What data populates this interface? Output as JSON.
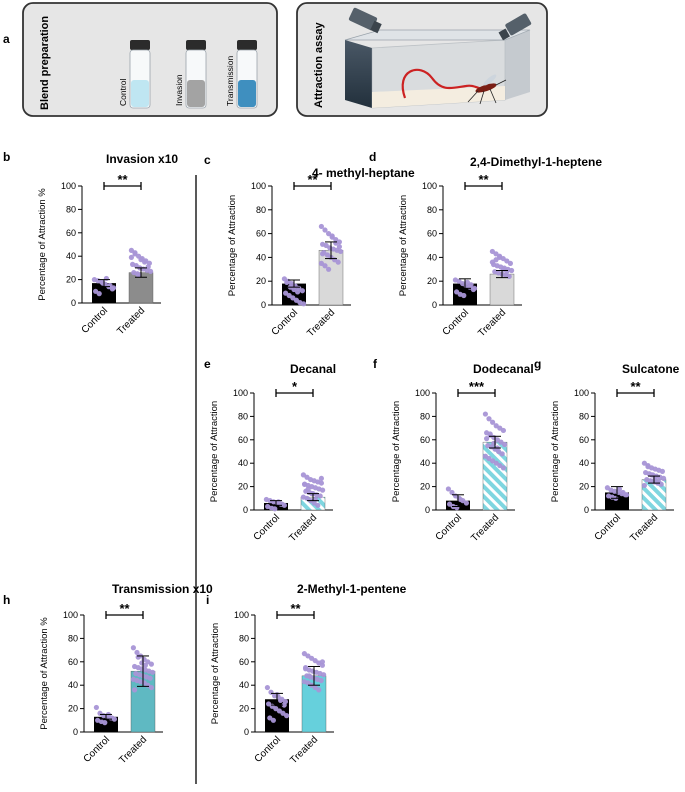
{
  "panels": {
    "a": "a",
    "b": "b",
    "c": "c",
    "d": "d",
    "e": "e",
    "f": "f",
    "g": "g",
    "h": "h",
    "i": "i"
  },
  "blend_box": {
    "title": "Blend preparation",
    "vials": [
      {
        "label": "Control",
        "color": "#bfe6f2"
      },
      {
        "label": "Invasion",
        "color": "#a3a3a3"
      },
      {
        "label": "Transmission",
        "color": "#3f8fbf"
      }
    ]
  },
  "assay_box": {
    "title": "Attraction assay"
  },
  "colors": {
    "control_bar": "#000000",
    "point": "#a895d6",
    "treated_invasion": "#8c8c8c",
    "treated_light": "#d9d9d9",
    "treated_cyan": "#66d0dc",
    "treated_teal": "#5fb9c2",
    "treated_hatch": "#7fd6e0"
  },
  "chart_data": [
    {
      "id": "b",
      "type": "bar",
      "title": "Invasion x10",
      "ylabel": "Percentage of Attraction %",
      "categories": [
        "Control",
        "Treated"
      ],
      "values": [
        17,
        26
      ],
      "errors": [
        3,
        4
      ],
      "ylim": [
        0,
        100
      ],
      "yticks": [
        0,
        20,
        40,
        60,
        80,
        100
      ],
      "significance": "**",
      "control_points": [
        20,
        19,
        18,
        16,
        14,
        12,
        10,
        8,
        17,
        21,
        15,
        13
      ],
      "treated_points": [
        45,
        42,
        40,
        38,
        36,
        34,
        33,
        32,
        30,
        29,
        28,
        27,
        26,
        25,
        37,
        35,
        31,
        39,
        43,
        24
      ],
      "treated_style": "gray"
    },
    {
      "id": "c",
      "type": "bar",
      "title": "4- methyl-heptane",
      "ylabel": "Percentage of Attraction",
      "categories": [
        "Control",
        "Treated"
      ],
      "values": [
        18,
        46
      ],
      "errors": [
        3,
        7
      ],
      "ylim": [
        0,
        100
      ],
      "yticks": [
        0,
        20,
        40,
        60,
        80,
        100
      ],
      "significance": "**",
      "control_points": [
        22,
        20,
        18,
        16,
        14,
        12,
        10,
        8,
        6,
        4,
        2,
        1,
        19,
        15,
        13,
        11
      ],
      "treated_points": [
        66,
        63,
        60,
        58,
        55,
        53,
        51,
        50,
        48,
        47,
        46,
        45,
        44,
        42,
        40,
        38,
        36,
        35,
        33,
        30,
        57,
        52,
        49,
        43
      ],
      "treated_style": "light"
    },
    {
      "id": "d",
      "type": "bar",
      "title": "2,4-Dimethyl-1-heptene",
      "ylabel": "Percentage of Attraction",
      "categories": [
        "Control",
        "Treated"
      ],
      "values": [
        18,
        26
      ],
      "errors": [
        4,
        3
      ],
      "ylim": [
        0,
        100
      ],
      "yticks": [
        0,
        20,
        40,
        60,
        80,
        100
      ],
      "significance": "**",
      "control_points": [
        21,
        20,
        18,
        16,
        15,
        13,
        11,
        9,
        8,
        19,
        17,
        14
      ],
      "treated_points": [
        45,
        43,
        41,
        39,
        37,
        35,
        34,
        33,
        32,
        31,
        30,
        29,
        28,
        27,
        26,
        25,
        24,
        36,
        38,
        40,
        30,
        28
      ],
      "treated_style": "light"
    },
    {
      "id": "e",
      "type": "bar",
      "title": "Decanal",
      "ylabel": "Percentage of Attraction",
      "categories": [
        "Control",
        "Treated"
      ],
      "values": [
        6,
        11
      ],
      "errors": [
        2,
        3
      ],
      "ylim": [
        0,
        100
      ],
      "yticks": [
        0,
        20,
        40,
        60,
        80,
        100
      ],
      "significance": "*",
      "control_points": [
        9,
        8,
        7,
        6,
        5,
        4,
        3,
        2,
        1,
        7,
        5
      ],
      "treated_points": [
        30,
        28,
        26,
        25,
        24,
        23,
        22,
        21,
        20,
        19,
        18,
        17,
        16,
        15,
        14,
        13,
        12,
        11,
        10,
        8,
        6,
        4,
        27,
        22,
        18,
        14,
        9
      ],
      "treated_style": "hatch"
    },
    {
      "id": "f",
      "type": "bar",
      "title": "Dodecanal",
      "ylabel": "Percentage of Attraction",
      "categories": [
        "Control",
        "Treated"
      ],
      "values": [
        8,
        58
      ],
      "errors": [
        5,
        5
      ],
      "ylim": [
        0,
        100
      ],
      "yticks": [
        0,
        20,
        40,
        60,
        80,
        100
      ],
      "significance": "***",
      "control_points": [
        18,
        15,
        12,
        10,
        8,
        6,
        5,
        3,
        2,
        9
      ],
      "treated_points": [
        82,
        78,
        75,
        72,
        70,
        68,
        66,
        64,
        62,
        60,
        58,
        56,
        55,
        54,
        52,
        50,
        48,
        46,
        44,
        42,
        40,
        38,
        36,
        61,
        65,
        57,
        53
      ],
      "treated_style": "hatch"
    },
    {
      "id": "g",
      "type": "bar",
      "title": "Sulcatone",
      "ylabel": "Percentage of Attraction",
      "categories": [
        "Control",
        "Treated"
      ],
      "values": [
        15,
        26
      ],
      "errors": [
        5,
        3
      ],
      "ylim": [
        0,
        100
      ],
      "yticks": [
        0,
        20,
        40,
        60,
        80,
        100
      ],
      "significance": "**",
      "control_points": [
        19,
        17,
        16,
        15,
        14,
        13,
        12,
        11,
        10,
        18,
        15,
        13
      ],
      "treated_points": [
        40,
        38,
        36,
        35,
        34,
        33,
        32,
        31,
        30,
        29,
        28,
        27,
        26,
        25,
        24,
        23,
        22,
        21,
        37,
        30,
        27,
        24
      ],
      "treated_style": "hatch"
    },
    {
      "id": "h",
      "type": "bar",
      "title": "Transmission x10",
      "ylabel": "Percentage of Attraction %",
      "categories": [
        "Control",
        "Treated"
      ],
      "values": [
        13,
        52
      ],
      "errors": [
        2,
        13
      ],
      "ylim": [
        0,
        100
      ],
      "yticks": [
        0,
        20,
        40,
        60,
        80,
        100
      ],
      "significance": "**",
      "control_points": [
        21,
        16,
        14,
        13,
        12,
        11,
        10,
        9,
        8,
        15,
        12
      ],
      "treated_points": [
        72,
        68,
        65,
        62,
        60,
        58,
        56,
        55,
        54,
        53,
        52,
        51,
        50,
        49,
        48,
        47,
        46,
        45,
        44,
        43,
        42,
        40,
        38,
        36,
        64,
        59,
        57
      ],
      "treated_style": "teal"
    },
    {
      "id": "i",
      "type": "bar",
      "title": "2-Methyl-1-pentene",
      "ylabel": "Percentage of Attraction",
      "categories": [
        "Control",
        "Treated"
      ],
      "values": [
        28,
        48
      ],
      "errors": [
        5,
        8
      ],
      "ylim": [
        0,
        100
      ],
      "yticks": [
        0,
        20,
        40,
        60,
        80,
        100
      ],
      "significance": "**",
      "control_points": [
        38,
        34,
        31,
        30,
        28,
        26,
        24,
        22,
        20,
        18,
        16,
        14,
        12,
        10,
        32,
        27,
        23
      ],
      "treated_points": [
        67,
        65,
        63,
        61,
        59,
        57,
        55,
        53,
        52,
        51,
        50,
        49,
        48,
        47,
        46,
        45,
        44,
        43,
        42,
        40,
        38,
        36,
        60,
        54,
        48
      ],
      "treated_style": "cyan"
    }
  ]
}
